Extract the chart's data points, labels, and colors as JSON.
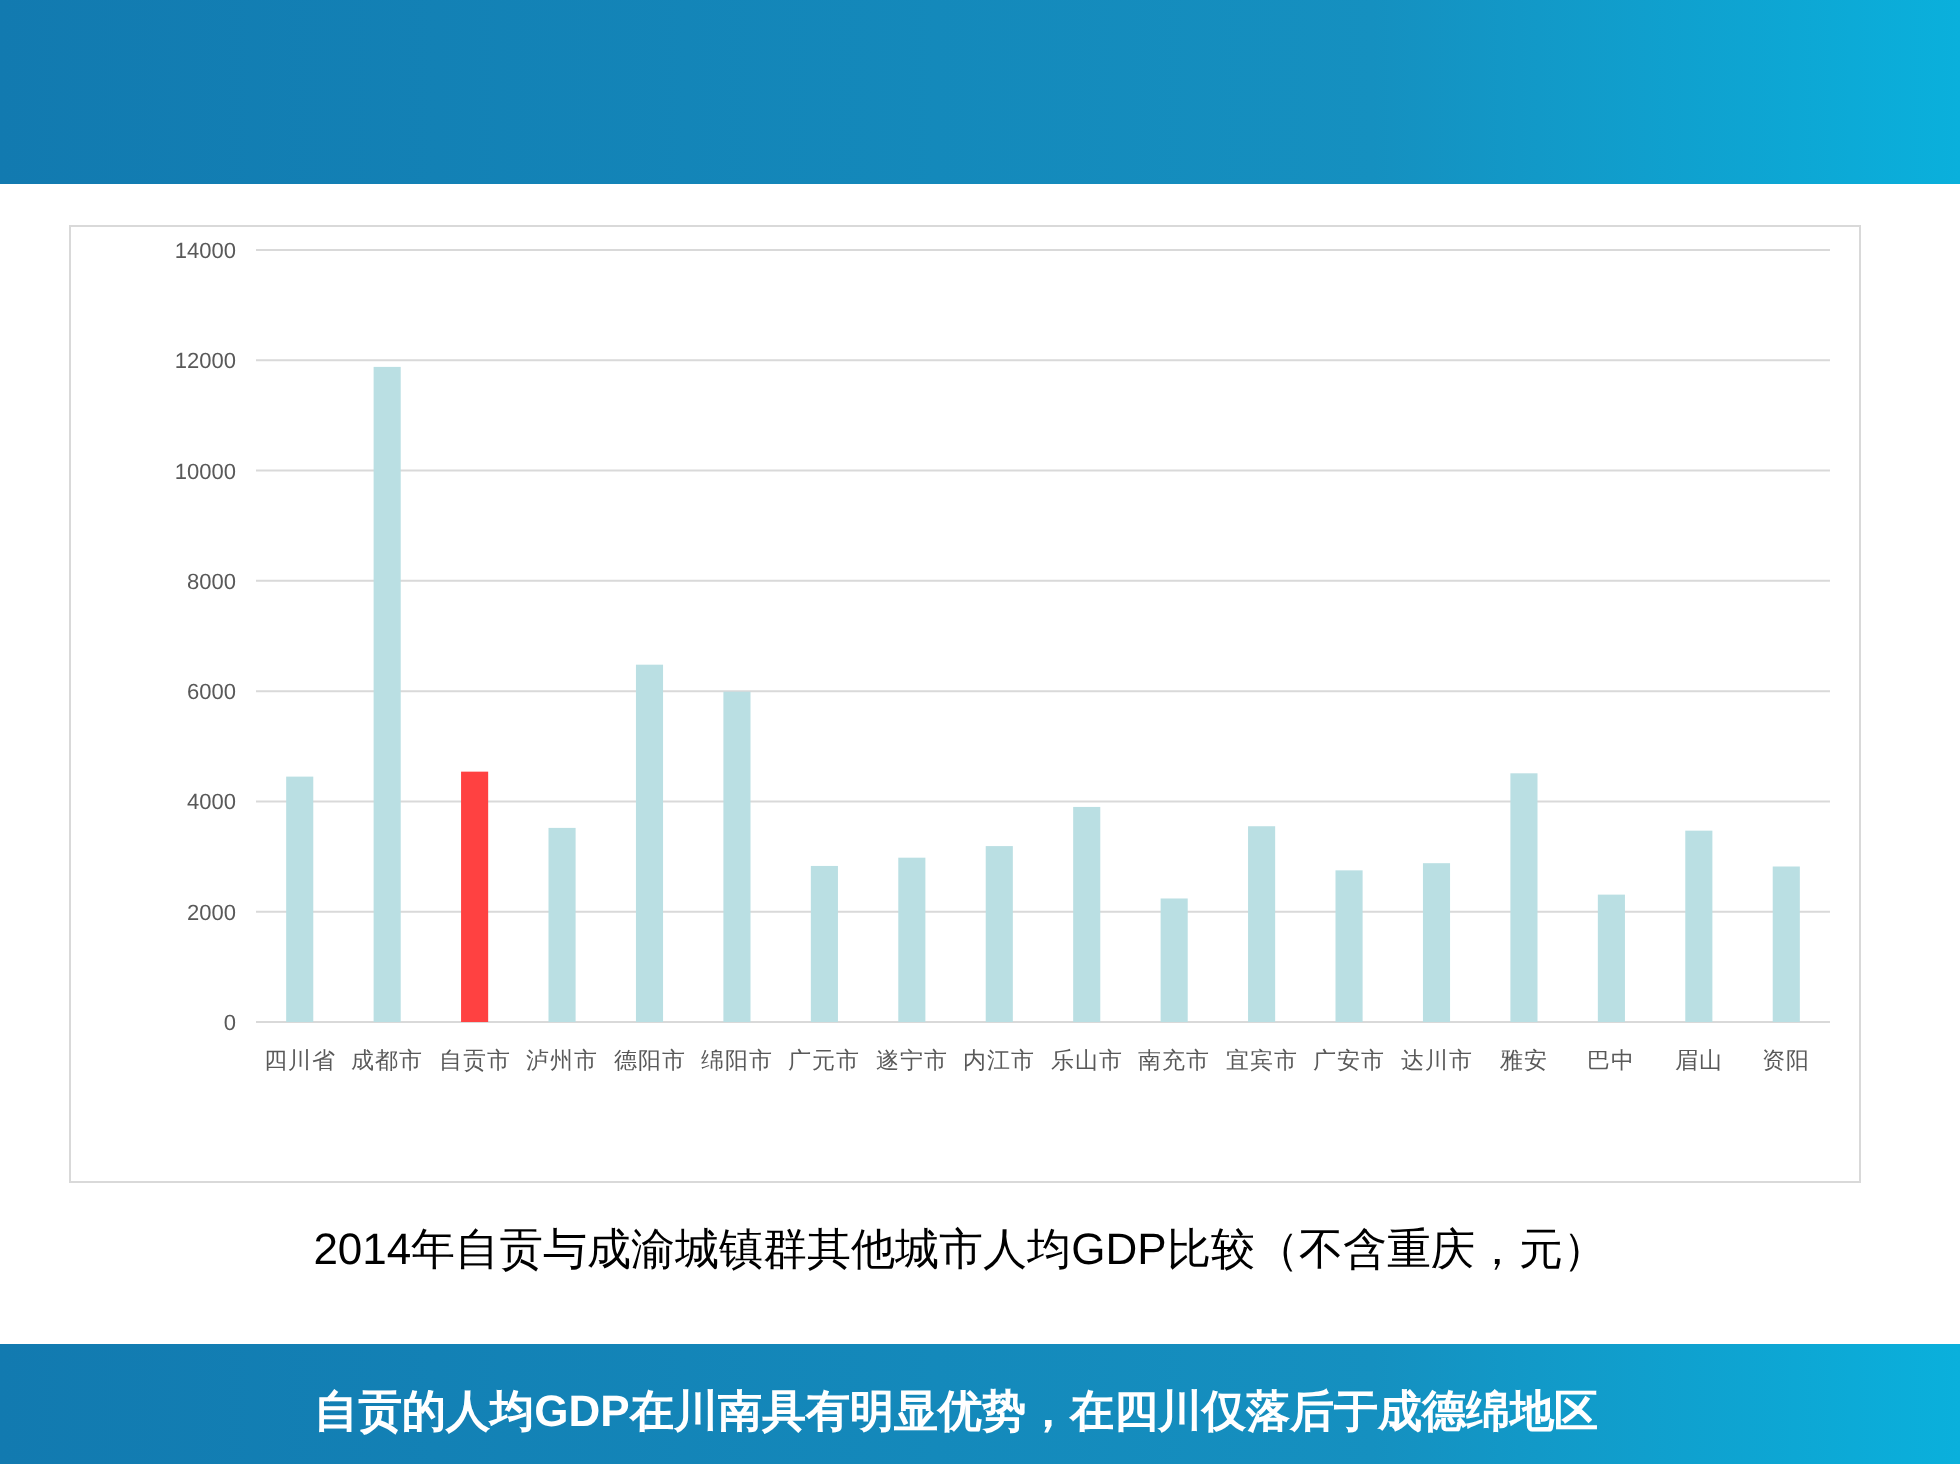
{
  "chart_data": {
    "type": "bar",
    "title": "2014年自贡与成渝城镇群其他城市人均GDP比较（不含重庆，元）",
    "annotations": [
      "自贡的人均GDP在川南具有明显优势，在四川仅落后于成德绵地区"
    ],
    "categories": [
      "四川省",
      "成都市",
      "自贡市",
      "泸州市",
      "德阳市",
      "绵阳市",
      "广元市",
      "遂宁市",
      "内江市",
      "乐山市",
      "南充市",
      "宜宾市",
      "广安市",
      "达川市",
      "雅安",
      "巴中",
      "眉山",
      "资阳"
    ],
    "values": [
      4450,
      11880,
      4540,
      3520,
      6480,
      5990,
      2830,
      2980,
      3190,
      3900,
      2240,
      3550,
      2750,
      2880,
      4510,
      2310,
      3470,
      2820
    ],
    "colors": [
      "#badfe3",
      "#badfe3",
      "#ff4141",
      "#badfe3",
      "#badfe3",
      "#badfe3",
      "#badfe3",
      "#badfe3",
      "#badfe3",
      "#badfe3",
      "#badfe3",
      "#badfe3",
      "#badfe3",
      "#badfe3",
      "#badfe3",
      "#badfe3",
      "#badfe3",
      "#badfe3"
    ],
    "ylim": [
      0,
      14000
    ],
    "yticks": [
      0,
      2000,
      4000,
      6000,
      8000,
      10000,
      12000,
      14000
    ],
    "grid": "y"
  }
}
